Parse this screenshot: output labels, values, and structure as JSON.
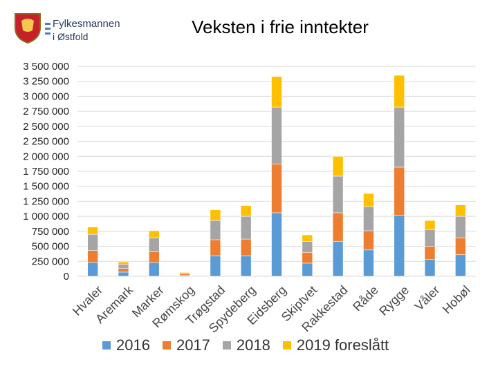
{
  "header": {
    "brand_name": "Fylkesmannen",
    "brand_sub": "i Østfold",
    "title": "Veksten i frie inntekter"
  },
  "colors": {
    "2016": "#5b9bd5",
    "2017": "#ed7d31",
    "2018": "#a5a5a5",
    "2019": "#ffc000",
    "brand_red": "#c8202b",
    "brand_navy": "#2a3a66"
  },
  "chart_data": {
    "type": "bar",
    "stacked": true,
    "title": "Veksten i frie inntekter",
    "xlabel": "",
    "ylabel": "",
    "ylim": [
      0,
      3500000
    ],
    "yticks": [
      0,
      250000,
      500000,
      750000,
      1000000,
      1250000,
      1500000,
      1750000,
      2000000,
      2250000,
      2500000,
      2750000,
      3000000,
      3250000,
      3500000
    ],
    "ytick_labels": [
      "0",
      "250 000",
      "500 000",
      "750 000",
      "1 000 000",
      "1 250 000",
      "1 500 000",
      "1 750 000",
      "2 000 000",
      "2 250 000",
      "2 500 000",
      "2 750 000",
      "3 000 000",
      "3 250 000",
      "3 500 000"
    ],
    "grid": true,
    "legend_position": "bottom",
    "categories": [
      "Hvaler",
      "Aremark",
      "Marker",
      "Rømskog",
      "Trøgstad",
      "Spydeberg",
      "Eidsberg",
      "Skiptvet",
      "Rakkestad",
      "Råde",
      "Rygge",
      "Våler",
      "Hobøl"
    ],
    "series": [
      {
        "name": "2016",
        "values": [
          230000,
          70000,
          230000,
          20000,
          340000,
          340000,
          1060000,
          220000,
          580000,
          440000,
          1020000,
          280000,
          360000
        ]
      },
      {
        "name": "2017",
        "values": [
          200000,
          60000,
          180000,
          20000,
          270000,
          280000,
          810000,
          180000,
          480000,
          320000,
          800000,
          220000,
          280000
        ]
      },
      {
        "name": "2018",
        "values": [
          270000,
          70000,
          230000,
          20000,
          320000,
          380000,
          950000,
          180000,
          610000,
          400000,
          1000000,
          280000,
          360000
        ]
      },
      {
        "name": "2019 foreslått",
        "values": [
          120000,
          40000,
          120000,
          10000,
          180000,
          180000,
          510000,
          110000,
          330000,
          220000,
          530000,
          150000,
          190000
        ]
      }
    ]
  }
}
